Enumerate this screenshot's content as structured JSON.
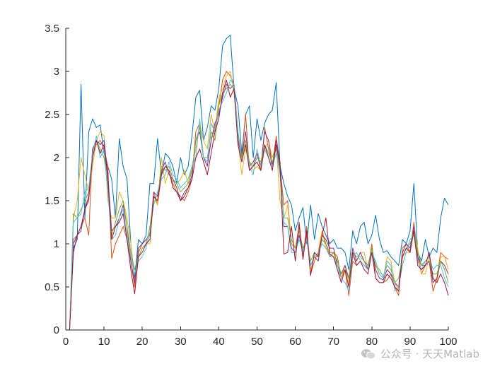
{
  "chart_data": {
    "type": "line",
    "title": "",
    "xlabel": "",
    "ylabel": "",
    "xlim": [
      0,
      100
    ],
    "ylim": [
      0,
      3.5
    ],
    "xticks": [
      0,
      10,
      20,
      30,
      40,
      50,
      60,
      70,
      80,
      90,
      100
    ],
    "yticks": [
      0,
      0.5,
      1,
      1.5,
      2,
      2.5,
      3,
      3.5
    ],
    "xtick_labels": [
      "0",
      "10",
      "20",
      "30",
      "40",
      "50",
      "60",
      "70",
      "80",
      "90",
      "100"
    ],
    "ytick_labels": [
      "0",
      "0.5",
      "1",
      "1.5",
      "2",
      "2.5",
      "3",
      "3.5"
    ],
    "grid": false,
    "box": false,
    "x": [
      1,
      2,
      3,
      4,
      5,
      6,
      7,
      8,
      9,
      10,
      11,
      12,
      13,
      14,
      15,
      16,
      17,
      18,
      19,
      20,
      21,
      22,
      23,
      24,
      25,
      26,
      27,
      28,
      29,
      30,
      31,
      32,
      33,
      34,
      35,
      36,
      37,
      38,
      39,
      40,
      41,
      42,
      43,
      44,
      45,
      46,
      47,
      48,
      49,
      50,
      51,
      52,
      53,
      54,
      55,
      56,
      57,
      58,
      59,
      60,
      61,
      62,
      63,
      64,
      65,
      66,
      67,
      68,
      69,
      70,
      71,
      72,
      73,
      74,
      75,
      76,
      77,
      78,
      79,
      80,
      81,
      82,
      83,
      84,
      85,
      86,
      87,
      88,
      89,
      90,
      91,
      92,
      93,
      94,
      95,
      96,
      97,
      98,
      99,
      100
    ],
    "series": [
      {
        "color": "#0072BD",
        "values": [
          0,
          0.95,
          1.05,
          2.85,
          1.3,
          2.3,
          2.45,
          2.35,
          2.38,
          2.05,
          1.9,
          1.75,
          1.3,
          2.22,
          1.9,
          1.75,
          1.0,
          0.6,
          1.05,
          1.0,
          1.1,
          1.7,
          1.7,
          2.22,
          1.8,
          2.05,
          2.0,
          1.9,
          1.7,
          2.0,
          1.8,
          1.9,
          2.25,
          2.7,
          2.78,
          2.2,
          2.35,
          2.6,
          2.55,
          2.8,
          3.3,
          3.38,
          3.42,
          2.8,
          2.6,
          2.05,
          2.5,
          2.6,
          2.0,
          2.45,
          2.2,
          2.4,
          2.5,
          2.55,
          2.87,
          1.9,
          1.7,
          1.55,
          1.45,
          1.15,
          1.3,
          1.42,
          1.0,
          1.45,
          1.05,
          1.35,
          1.2,
          1.1,
          1.0,
          1.05,
          0.95,
          0.95,
          0.9,
          0.7,
          1.15,
          1.0,
          1.2,
          1.25,
          1.0,
          1.1,
          1.33,
          1.05,
          0.9,
          0.92,
          0.85,
          0.8,
          0.75,
          1.05,
          1.0,
          1.15,
          1.7,
          0.9,
          0.8,
          1.05,
          0.85,
          0.95,
          0.9,
          1.3,
          1.53,
          1.45
        ]
      },
      {
        "color": "#D95319",
        "values": [
          0,
          1.05,
          1.1,
          1.2,
          1.3,
          1.1,
          2.1,
          2.15,
          2.2,
          2.1,
          1.9,
          0.83,
          1.0,
          1.1,
          1.2,
          1.05,
          0.8,
          0.5,
          0.9,
          1.0,
          1.05,
          1.1,
          1.6,
          1.45,
          1.8,
          1.9,
          1.85,
          1.7,
          1.6,
          1.55,
          1.5,
          1.6,
          1.75,
          2.3,
          2.4,
          2.0,
          1.95,
          2.2,
          2.35,
          2.6,
          2.9,
          3.0,
          2.95,
          2.85,
          2.3,
          2.0,
          2.5,
          1.85,
          1.9,
          2.05,
          1.85,
          2.35,
          2.1,
          1.9,
          2.25,
          1.9,
          1.45,
          1.5,
          1.0,
          0.95,
          1.2,
          0.85,
          1.2,
          0.65,
          0.8,
          0.9,
          1.15,
          1.0,
          0.85,
          0.9,
          0.85,
          0.6,
          0.7,
          0.4,
          0.8,
          0.75,
          0.8,
          0.75,
          0.7,
          1.0,
          0.6,
          0.55,
          0.55,
          0.58,
          0.65,
          0.5,
          0.4,
          0.95,
          1.0,
          0.9,
          1.25,
          0.85,
          0.65,
          0.75,
          0.8,
          0.45,
          0.6,
          0.9,
          0.85,
          0.82
        ]
      },
      {
        "color": "#EDB120",
        "values": [
          0,
          1.3,
          1.5,
          2.0,
          1.8,
          1.6,
          1.9,
          2.2,
          2.3,
          2.25,
          1.5,
          1.3,
          1.3,
          1.6,
          1.5,
          1.3,
          1.0,
          0.55,
          0.85,
          0.95,
          1.0,
          1.0,
          1.55,
          1.45,
          2.0,
          1.7,
          1.85,
          1.65,
          1.7,
          1.75,
          1.85,
          1.7,
          1.9,
          2.1,
          2.4,
          2.2,
          2.1,
          2.5,
          2.3,
          2.7,
          2.8,
          2.95,
          3.0,
          2.75,
          2.2,
          1.8,
          2.1,
          1.95,
          1.85,
          1.9,
          1.85,
          2.1,
          2.2,
          2.0,
          2.15,
          1.5,
          1.3,
          1.45,
          1.0,
          0.95,
          1.15,
          0.9,
          1.1,
          0.7,
          0.85,
          0.85,
          1.15,
          0.95,
          0.9,
          0.9,
          0.7,
          0.6,
          0.75,
          0.55,
          0.85,
          0.8,
          0.9,
          0.9,
          0.7,
          0.95,
          0.75,
          0.65,
          0.6,
          0.85,
          0.8,
          0.55,
          0.45,
          0.85,
          0.9,
          0.9,
          1.2,
          0.95,
          0.65,
          0.65,
          0.85,
          0.6,
          0.55,
          0.85,
          0.85,
          0.7
        ]
      },
      {
        "color": "#7E2F8E",
        "values": [
          0,
          1.0,
          1.1,
          1.15,
          1.4,
          1.5,
          2.1,
          2.2,
          2.15,
          2.2,
          1.8,
          1.15,
          1.2,
          1.3,
          1.45,
          1.2,
          0.8,
          0.55,
          0.95,
          1.0,
          1.05,
          1.1,
          1.6,
          1.55,
          1.85,
          1.95,
          1.8,
          1.75,
          1.65,
          1.5,
          1.6,
          1.65,
          1.8,
          2.2,
          2.3,
          2.0,
          1.9,
          2.2,
          2.4,
          2.5,
          2.7,
          2.85,
          2.8,
          2.85,
          2.2,
          2.0,
          2.3,
          1.9,
          1.95,
          2.05,
          1.9,
          2.3,
          2.2,
          1.9,
          2.2,
          1.95,
          1.2,
          1.2,
          0.95,
          0.9,
          1.1,
          0.9,
          1.1,
          0.75,
          0.85,
          0.8,
          1.1,
          1.05,
          0.95,
          0.95,
          0.75,
          0.65,
          0.75,
          0.6,
          0.95,
          0.8,
          0.9,
          0.8,
          0.7,
          0.95,
          0.7,
          0.6,
          0.58,
          0.7,
          0.65,
          0.55,
          0.5,
          0.9,
          1.0,
          0.95,
          1.2,
          0.85,
          0.75,
          0.75,
          0.8,
          0.55,
          0.6,
          0.8,
          0.75,
          0.65
        ]
      },
      {
        "color": "#77AC30",
        "values": [
          0,
          1.35,
          1.3,
          1.4,
          1.5,
          1.6,
          2.0,
          2.2,
          2.1,
          2.0,
          1.7,
          1.1,
          1.25,
          1.4,
          1.5,
          1.2,
          0.9,
          0.7,
          0.85,
          0.95,
          1.0,
          1.2,
          1.5,
          1.5,
          1.9,
          1.85,
          1.9,
          1.75,
          1.7,
          1.6,
          1.65,
          1.7,
          1.85,
          2.2,
          2.35,
          2.0,
          2.0,
          2.3,
          2.2,
          2.6,
          2.75,
          2.8,
          2.85,
          2.8,
          2.25,
          2.0,
          2.2,
          1.95,
          1.9,
          2.0,
          1.95,
          2.15,
          2.05,
          1.95,
          2.1,
          1.85,
          1.3,
          1.3,
          1.05,
          0.95,
          1.15,
          0.95,
          1.05,
          0.8,
          0.9,
          0.85,
          1.05,
          1.0,
          0.9,
          0.9,
          0.8,
          0.65,
          0.7,
          0.6,
          0.9,
          0.85,
          0.85,
          0.8,
          0.75,
          0.95,
          0.75,
          0.7,
          0.62,
          0.75,
          0.7,
          0.55,
          0.6,
          0.85,
          0.95,
          1.0,
          1.15,
          0.9,
          0.75,
          0.8,
          0.8,
          0.65,
          0.65,
          0.8,
          0.7,
          0.55
        ]
      },
      {
        "color": "#4DBEEE",
        "values": [
          0,
          1.25,
          1.3,
          1.35,
          1.6,
          1.65,
          2.05,
          2.25,
          2.0,
          2.1,
          1.6,
          1.05,
          1.1,
          1.3,
          1.4,
          1.1,
          0.85,
          0.65,
          0.8,
          0.85,
          0.95,
          1.15,
          1.45,
          1.6,
          1.75,
          1.8,
          1.95,
          1.8,
          1.75,
          1.65,
          1.7,
          1.75,
          1.9,
          2.0,
          2.45,
          2.0,
          1.95,
          2.4,
          2.3,
          2.55,
          2.65,
          2.75,
          2.9,
          2.85,
          2.3,
          1.95,
          2.15,
          1.9,
          1.8,
          2.1,
          1.9,
          2.1,
          2.0,
          1.9,
          2.05,
          1.8,
          1.25,
          1.2,
          0.9,
          0.9,
          1.05,
          0.9,
          1.05,
          0.75,
          0.85,
          0.9,
          1.0,
          0.95,
          0.85,
          0.85,
          0.75,
          0.6,
          0.55,
          0.45,
          0.85,
          0.9,
          0.8,
          0.75,
          0.7,
          0.9,
          0.8,
          0.65,
          0.6,
          0.8,
          0.75,
          0.45,
          0.5,
          0.75,
          0.9,
          1.05,
          1.1,
          0.8,
          0.7,
          0.8,
          0.85,
          0.7,
          0.75,
          0.75,
          0.6,
          0.5
        ]
      },
      {
        "color": "#A2142F",
        "values": [
          0,
          0.9,
          1.1,
          1.2,
          1.4,
          1.55,
          2.0,
          2.2,
          2.05,
          2.15,
          1.75,
          1.05,
          1.2,
          1.25,
          1.35,
          1.05,
          0.7,
          0.42,
          0.85,
          0.9,
          1.0,
          1.05,
          1.55,
          1.5,
          1.8,
          1.9,
          1.85,
          1.65,
          1.6,
          1.5,
          1.55,
          1.65,
          1.75,
          2.0,
          2.1,
          1.95,
          1.8,
          2.05,
          2.3,
          2.45,
          2.75,
          2.9,
          2.7,
          2.8,
          2.15,
          1.95,
          2.15,
          1.85,
          1.9,
          1.95,
          1.85,
          2.15,
          2.0,
          1.85,
          2.15,
          1.9,
          0.88,
          0.9,
          1.2,
          0.8,
          1.25,
          0.82,
          1.15,
          0.63,
          0.9,
          0.85,
          1.1,
          1.3,
          0.88,
          0.85,
          0.7,
          0.55,
          0.7,
          0.5,
          0.9,
          0.75,
          0.8,
          0.7,
          0.65,
          0.9,
          0.6,
          0.55,
          0.55,
          0.65,
          0.6,
          0.5,
          0.45,
          0.85,
          0.95,
          0.9,
          1.15,
          0.75,
          0.7,
          0.75,
          0.9,
          0.6,
          0.55,
          0.65,
          0.55,
          0.4
        ]
      }
    ]
  },
  "watermark": {
    "icon": "wechat-icon",
    "text": "公众号 · 天天Matlab"
  }
}
